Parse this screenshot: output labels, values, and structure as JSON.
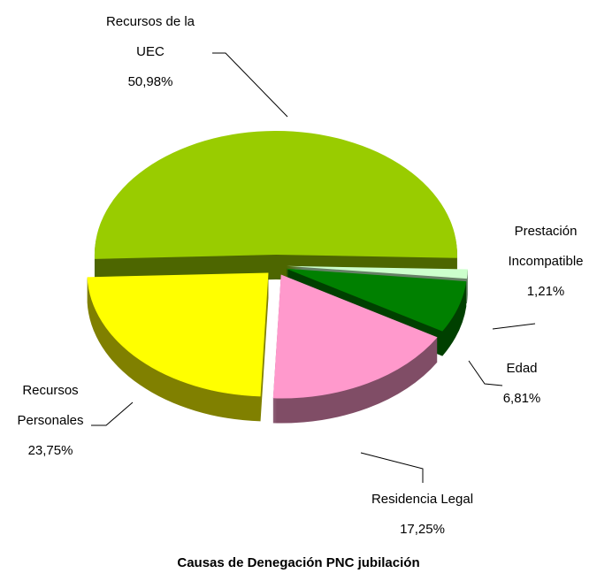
{
  "chart_data": {
    "type": "pie",
    "title": "Causas de Denegación PNC jubilación",
    "categories": [
      "Recursos de la UEC",
      "Prestación Incompatible",
      "Edad",
      "Residencia Legal",
      "Recursos Personales"
    ],
    "values": [
      50.98,
      1.21,
      6.81,
      17.25,
      23.75
    ],
    "value_labels": [
      "50,98%",
      "1,21%",
      "6,81%",
      "17,25%",
      "23,75%"
    ],
    "colors": [
      "#99cc00",
      "#ccffcc",
      "#008000",
      "#ff99cc",
      "#ffff00"
    ]
  }
}
